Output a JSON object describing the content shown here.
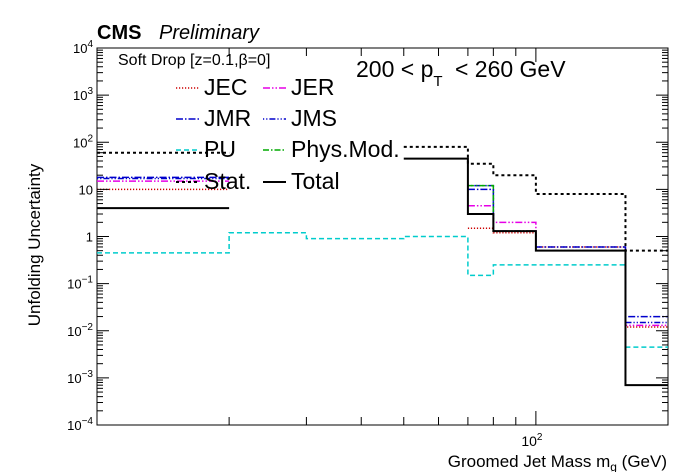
{
  "chart_data": {
    "type": "line",
    "header": {
      "experiment": "CMS",
      "status": "Preliminary"
    },
    "annotation": {
      "algorithm": "Soft Drop [z=0.1,β=0]",
      "pt_range": "200 <  p",
      "pt_sub": "T",
      "pt_range_end": " < 260 GeV"
    },
    "xlabel": "Groomed Jet Mass m",
    "xlabel_sub": "g",
    "xlabel_unit": " (GeV)",
    "ylabel": "Unfolding Uncertainty",
    "x_scale": "log",
    "y_scale": "log",
    "xlim": [
      10,
      200
    ],
    "ylim": [
      0.0001,
      10000
    ],
    "grid": false,
    "legend_position": "top-left",
    "x_ticks": [
      {
        "value": 100,
        "base": "10",
        "exp": "2"
      }
    ],
    "y_ticks": [
      {
        "value": 0.0001,
        "base": "10",
        "exp": "−4"
      },
      {
        "value": 0.001,
        "base": "10",
        "exp": "−3"
      },
      {
        "value": 0.01,
        "base": "10",
        "exp": "−2"
      },
      {
        "value": 0.1,
        "base": "10",
        "exp": "−1"
      },
      {
        "value": 1,
        "base": "1",
        "exp": ""
      },
      {
        "value": 10,
        "base": "10",
        "exp": ""
      },
      {
        "value": 100,
        "base": "10",
        "exp": "2"
      },
      {
        "value": 1000,
        "base": "10",
        "exp": "3"
      },
      {
        "value": 10000,
        "base": "10",
        "exp": "4"
      }
    ],
    "bin_edges": [
      10,
      20,
      30,
      50,
      70,
      80,
      100,
      160,
      200
    ],
    "series": [
      {
        "name": "JEC",
        "color": "#cc0000",
        "dash": "1.2,1.8",
        "width": 1.5,
        "values": [
          10,
          null,
          null,
          null,
          1.5,
          1.2,
          0.6,
          0.012,
          0.012
        ]
      },
      {
        "name": "JER",
        "color": "#e600e6",
        "dash": "7,2,1.5,2,1.5,2",
        "width": 1.5,
        "values": [
          15,
          null,
          null,
          null,
          4.5,
          2.0,
          0.5,
          0.013,
          0.013
        ]
      },
      {
        "name": "JMR",
        "color": "#0000cc",
        "dash": "7,2,1.5,2",
        "width": 1.5,
        "values": [
          18,
          null,
          null,
          null,
          10,
          1.3,
          0.6,
          0.02,
          0.02
        ]
      },
      {
        "name": "JMS",
        "color": "#0000cc",
        "dash": "1.2,2,1.2,2,6,2",
        "width": 1.5,
        "values": [
          17,
          null,
          null,
          null,
          12,
          1.3,
          0.5,
          0.015,
          0.015
        ]
      },
      {
        "name": "PU",
        "color": "#00cccc",
        "dash": "5,3",
        "width": 1.5,
        "values": [
          0.45,
          1.2,
          0.9,
          1.0,
          0.15,
          0.25,
          0.25,
          0.0045,
          0.0045
        ]
      },
      {
        "name": "Phys.Mod.",
        "color": "#00aa00",
        "dash": "6,2,1.5,2",
        "width": 1.5,
        "values": [
          null,
          null,
          null,
          null,
          12,
          1.3,
          0.5,
          null,
          null
        ]
      },
      {
        "name": "Stat.",
        "color": "#000000",
        "dash": "3,3",
        "width": 2,
        "values": [
          60,
          null,
          null,
          80,
          35,
          20,
          8,
          0.5,
          0.5
        ]
      },
      {
        "name": "Total",
        "color": "#000000",
        "dash": "",
        "width": 2,
        "values": [
          4,
          null,
          null,
          45,
          3,
          1.3,
          0.5,
          0.0007,
          0.0007
        ]
      }
    ]
  }
}
